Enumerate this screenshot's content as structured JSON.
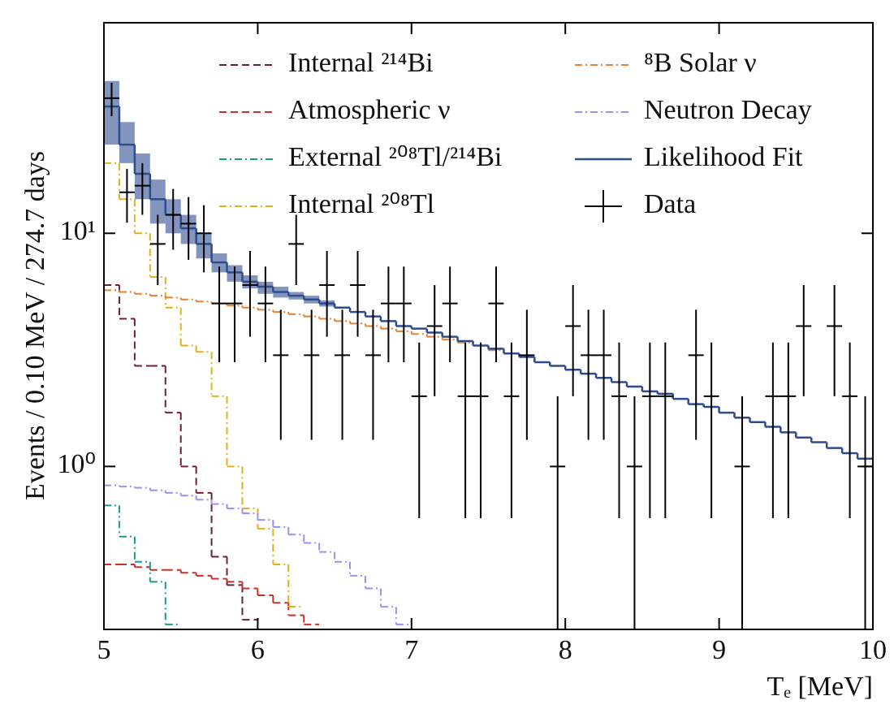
{
  "chart_data": {
    "type": "step-histogram",
    "xlabel": "Tₑ [MeV]",
    "ylabel": "Events / 0.10 MeV / 274.7 days",
    "log_y": true,
    "legend": "upper right",
    "xlim": [
      5,
      10
    ],
    "xticks": [
      5,
      6,
      7,
      8,
      9,
      10
    ],
    "ylim": [
      0.2,
      80
    ],
    "yticks": [
      {
        "value": 1,
        "label": "10⁰"
      },
      {
        "value": 10,
        "label": "10¹"
      }
    ],
    "bins": [
      5.0,
      5.1,
      5.2,
      5.3,
      5.4,
      5.5,
      5.6,
      5.7,
      5.8,
      5.9,
      6.0,
      6.1,
      6.2,
      6.3,
      6.4,
      6.5,
      6.6,
      6.7,
      6.8,
      6.9,
      7.0,
      7.1,
      7.2,
      7.3,
      7.4,
      7.5,
      7.6,
      7.7,
      7.8,
      7.9,
      8.0,
      8.1,
      8.2,
      8.3,
      8.4,
      8.5,
      8.6,
      8.7,
      8.8,
      8.9,
      9.0,
      9.1,
      9.2,
      9.3,
      9.4,
      9.5,
      9.6,
      9.7,
      9.8,
      9.9,
      10.0
    ],
    "series": [
      {
        "name": "Internal ²¹⁴Bi",
        "color": "#6b2038",
        "linestyle": "dashed",
        "values": [
          6.0,
          4.3,
          2.7,
          2.7,
          1.7,
          1.0,
          0.77,
          0.41,
          0.31,
          0.22,
          null,
          null,
          null,
          null,
          null,
          null,
          null,
          null,
          null,
          null,
          null,
          null,
          null,
          null,
          null,
          null,
          null,
          null,
          null,
          null,
          null,
          null,
          null,
          null,
          null,
          null,
          null,
          null,
          null,
          null,
          null,
          null,
          null,
          null,
          null,
          null,
          null,
          null,
          null,
          null
        ]
      },
      {
        "name": "Atmospheric ν",
        "color": "#c8302a",
        "linestyle": "dashed",
        "values": [
          0.38,
          0.38,
          0.37,
          0.36,
          0.36,
          0.35,
          0.34,
          0.33,
          0.32,
          0.3,
          0.28,
          0.26,
          0.23,
          0.21,
          null,
          null,
          null,
          null,
          null,
          null,
          null,
          null,
          null,
          null,
          null,
          null,
          null,
          null,
          null,
          null,
          null,
          null,
          null,
          null,
          null,
          null,
          null,
          null,
          null,
          null,
          null,
          null,
          null,
          null,
          null,
          null,
          null,
          null,
          null,
          null
        ]
      },
      {
        "name": "External ²⁰⁸Tl/²¹⁴Bi",
        "color": "#1a9a8a",
        "linestyle": "dashdot",
        "values": [
          0.68,
          0.5,
          0.39,
          0.32,
          0.21,
          null,
          null,
          null,
          null,
          null,
          null,
          null,
          null,
          null,
          null,
          null,
          null,
          null,
          null,
          null,
          null,
          null,
          null,
          null,
          null,
          null,
          null,
          null,
          null,
          null,
          null,
          null,
          null,
          null,
          null,
          null,
          null,
          null,
          null,
          null,
          null,
          null,
          null,
          null,
          null,
          null,
          null,
          null,
          null,
          null
        ]
      },
      {
        "name": "Internal ²⁰⁸Tl",
        "color": "#e0b020",
        "linestyle": "dashdot",
        "values": [
          20,
          14,
          10,
          6.5,
          4.8,
          3.3,
          3.1,
          2.0,
          1.0,
          0.66,
          0.54,
          0.38,
          0.25,
          null,
          null,
          null,
          null,
          null,
          null,
          null,
          null,
          null,
          null,
          null,
          null,
          null,
          null,
          null,
          null,
          null,
          null,
          null,
          null,
          null,
          null,
          null,
          null,
          null,
          null,
          null,
          null,
          null,
          null,
          null,
          null,
          null,
          null,
          null,
          null,
          null
        ]
      },
      {
        "name": "⁸B Solar ν",
        "color": "#e88030",
        "linestyle": "dashdot",
        "values": [
          5.7,
          5.6,
          5.5,
          5.4,
          5.3,
          5.2,
          5.1,
          5.0,
          4.9,
          4.8,
          4.7,
          4.6,
          4.5,
          4.4,
          4.3,
          4.2,
          4.1,
          4.0,
          3.9,
          3.8,
          3.7,
          3.6,
          3.5,
          3.4,
          3.3,
          3.15,
          3.05,
          2.95,
          2.8,
          2.7,
          2.6,
          2.5,
          2.4,
          2.3,
          2.2,
          2.1,
          2.05,
          1.95,
          1.85,
          1.8,
          1.7,
          1.62,
          1.55,
          1.48,
          1.4,
          1.33,
          1.27,
          1.2,
          1.14,
          1.08
        ]
      },
      {
        "name": "Neutron Decay",
        "color": "#9a90f0",
        "linestyle": "dashdot",
        "values": [
          0.83,
          0.82,
          0.81,
          0.79,
          0.77,
          0.75,
          0.72,
          0.69,
          0.66,
          0.63,
          0.59,
          0.55,
          0.51,
          0.47,
          0.43,
          0.39,
          0.34,
          0.3,
          0.25,
          0.21,
          null,
          null,
          null,
          null,
          null,
          null,
          null,
          null,
          null,
          null,
          null,
          null,
          null,
          null,
          null,
          null,
          null,
          null,
          null,
          null,
          null,
          null,
          null,
          null,
          null,
          null,
          null,
          null,
          null,
          null
        ]
      },
      {
        "name": "Likelihood Fit",
        "color": "#2e4c8c",
        "band_color": "#5a72aa",
        "linestyle": "solid",
        "values": [
          35,
          24,
          18,
          14,
          12,
          10.5,
          9,
          7.5,
          6.8,
          6.2,
          5.9,
          5.6,
          5.4,
          5.2,
          5.0,
          4.8,
          4.6,
          4.4,
          4.2,
          4.0,
          3.9,
          3.75,
          3.6,
          3.45,
          3.3,
          3.2,
          3.05,
          2.95,
          2.8,
          2.7,
          2.6,
          2.5,
          2.4,
          2.3,
          2.2,
          2.1,
          2.05,
          1.95,
          1.85,
          1.8,
          1.7,
          1.62,
          1.55,
          1.48,
          1.4,
          1.33,
          1.27,
          1.2,
          1.14,
          1.08
        ],
        "lower": [
          24,
          20,
          14,
          11,
          10,
          9,
          7.8,
          6.8,
          6.2,
          5.8,
          5.5,
          5.3,
          5.2,
          5.0,
          4.85,
          null,
          null,
          null,
          null,
          null,
          null,
          null,
          null,
          null,
          null,
          null,
          null,
          null,
          null,
          null,
          null,
          null,
          null,
          null,
          null,
          null,
          null,
          null,
          null,
          null,
          null,
          null,
          null,
          null,
          null,
          null,
          null,
          null,
          null,
          null
        ],
        "upper": [
          45,
          30,
          22,
          17,
          14,
          12,
          10,
          8.2,
          7.3,
          6.6,
          6.2,
          5.9,
          5.6,
          5.4,
          5.15,
          null,
          null,
          null,
          null,
          null,
          null,
          null,
          null,
          null,
          null,
          null,
          null,
          null,
          null,
          null,
          null,
          null,
          null,
          null,
          null,
          null,
          null,
          null,
          null,
          null,
          null,
          null,
          null,
          null,
          null,
          null,
          null,
          null,
          null,
          null
        ]
      },
      {
        "name": "Data",
        "color": "#000000",
        "linestyle": "errorbar",
        "values": [
          38,
          15,
          16,
          9,
          12,
          11,
          10,
          5,
          5,
          6,
          5,
          3,
          9,
          3,
          6,
          3,
          6,
          3,
          5,
          5,
          2,
          4,
          5,
          2,
          2,
          5,
          2,
          3,
          null,
          1,
          4,
          3,
          3,
          2,
          1,
          2,
          2,
          null,
          3,
          2,
          null,
          1,
          null,
          2,
          2,
          4,
          null,
          4,
          2,
          1
        ],
        "errors": [
          6.2,
          3.9,
          4,
          3,
          3.5,
          3.3,
          3.2,
          2.2,
          2.2,
          2.4,
          2.2,
          1.7,
          3,
          1.7,
          2.4,
          1.7,
          2.4,
          1.7,
          2.2,
          2.2,
          1.4,
          2,
          2.2,
          1.4,
          1.4,
          2.2,
          1.4,
          1.7,
          null,
          1,
          2,
          1.7,
          1.7,
          1.4,
          1,
          1.4,
          1.4,
          null,
          1.7,
          1.4,
          null,
          1,
          null,
          1.4,
          1.4,
          2,
          null,
          2,
          1.4,
          1
        ]
      }
    ]
  }
}
